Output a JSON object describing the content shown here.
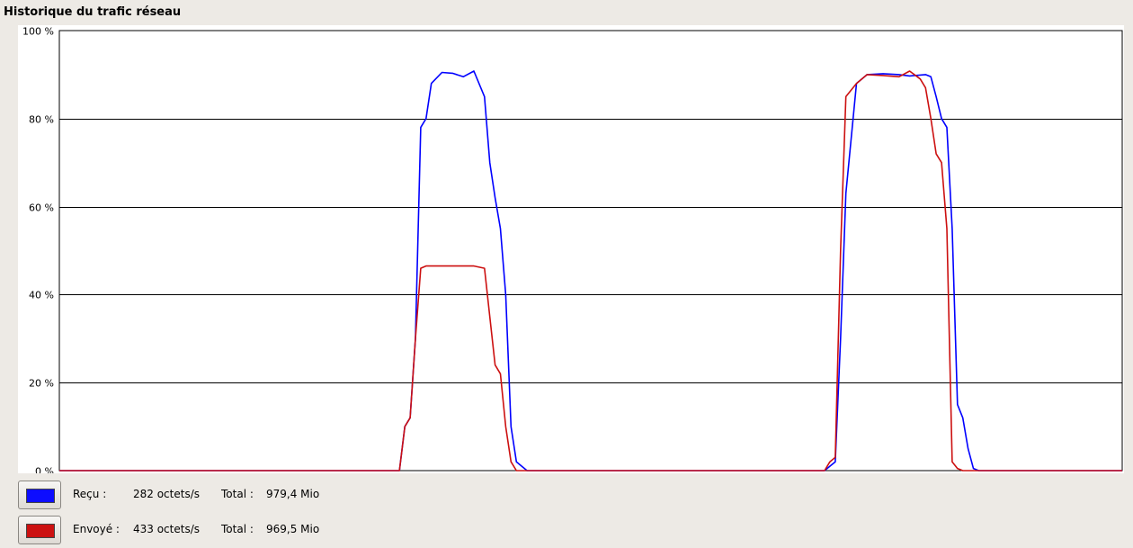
{
  "title": "Historique du trafic réseau",
  "chart_data": {
    "type": "line",
    "ylim": [
      0,
      100
    ],
    "yticks": [
      "100 %",
      "80 %",
      "60 %",
      "40 %",
      "20 %",
      "0 %"
    ],
    "grid": true,
    "x": [
      0,
      10,
      20,
      30,
      40,
      45,
      50,
      55,
      58,
      61,
      63,
      64,
      65,
      66,
      67,
      68,
      69,
      70,
      72,
      74,
      76,
      78,
      80,
      81,
      82,
      83,
      84,
      85,
      86,
      87,
      88,
      89,
      90,
      92,
      95,
      100,
      110,
      120,
      130,
      140,
      142,
      144,
      145,
      146,
      147,
      148,
      150,
      152,
      155,
      158,
      160,
      162,
      163,
      164,
      165,
      166,
      167,
      168,
      169,
      170,
      171,
      172,
      173,
      174,
      175,
      180,
      190,
      200
    ],
    "series": [
      {
        "name": "Reçu",
        "color": "#0000ff",
        "values": [
          0,
          0,
          0,
          0,
          0,
          0,
          0,
          0,
          0,
          0,
          0,
          0,
          10,
          12,
          30,
          78,
          80,
          88,
          90.5,
          90.3,
          89.5,
          90.8,
          85,
          70,
          62,
          55,
          40,
          10,
          2,
          1,
          0,
          0,
          0,
          0,
          0,
          0,
          0,
          0,
          0,
          0,
          0,
          0,
          1,
          2,
          30,
          63,
          88,
          90,
          90.2,
          90,
          89.7,
          89.9,
          90,
          89.5,
          85,
          80,
          78,
          55,
          15,
          12,
          5,
          0.5,
          0,
          0,
          0,
          0,
          0,
          0
        ]
      },
      {
        "name": "Envoyé",
        "color": "#cc1010",
        "values": [
          0,
          0,
          0,
          0,
          0,
          0,
          0,
          0,
          0,
          0,
          0,
          0,
          10,
          12,
          30,
          46,
          46.5,
          46.5,
          46.5,
          46.5,
          46.5,
          46.5,
          46,
          35,
          24,
          22,
          10,
          2,
          0,
          0,
          0,
          0,
          0,
          0,
          0,
          0,
          0,
          0,
          0,
          0,
          0,
          0,
          2,
          3,
          50,
          85,
          88,
          90,
          89.8,
          89.5,
          90.8,
          89,
          87,
          80,
          72,
          70,
          55,
          2,
          0.5,
          0,
          0,
          0,
          0,
          0,
          0,
          0,
          0,
          0
        ]
      }
    ]
  },
  "legend": [
    {
      "label": "Reçu :",
      "rate": "282 octets/s",
      "total_label": "Total :",
      "total": "979,4 Mio",
      "color": "#0d0dff"
    },
    {
      "label": "Envoyé :",
      "rate": "433 octets/s",
      "total_label": "Total :",
      "total": "969,5 Mio",
      "color": "#cc1111"
    }
  ]
}
